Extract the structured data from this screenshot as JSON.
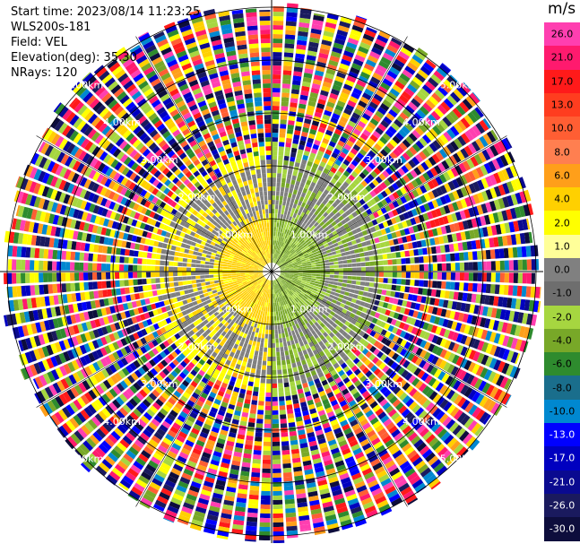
{
  "header": {
    "start_time": "Start time: 2023/08/14 11:23:25",
    "instrument": "WLS200s-181",
    "field": "Field: VEL",
    "elevation": "Elevation(deg): 35.30",
    "nrays": "NRays: 120"
  },
  "colorbar": {
    "unit": "m/s",
    "ticks": [
      "26.0",
      "21.0",
      "17.0",
      "13.0",
      "10.0",
      "8.0",
      "6.0",
      "4.0",
      "2.0",
      "1.0",
      "0.0",
      "-1.0",
      "-2.0",
      "-4.0",
      "-6.0",
      "-8.0",
      "-10.0",
      "-13.0",
      "-17.0",
      "-21.0",
      "-26.0",
      "-30.0"
    ],
    "colors": [
      "#ff3fb0",
      "#ff1a6e",
      "#ff1a1a",
      "#ff3d1f",
      "#ff5e33",
      "#ff7f50",
      "#ff9f1a",
      "#ffd000",
      "#ffff00",
      "#ffff99",
      "#808080",
      "#6e6e6e",
      "#a6d640",
      "#78a828",
      "#2e8b2e",
      "#1a6e8c",
      "#0088d0",
      "#0000ff",
      "#0000c0",
      "#0a0a90",
      "#1a1a5e",
      "#0d0d3c"
    ]
  },
  "chart_data": {
    "type": "heatmap",
    "projection": "polar PPI",
    "field": "VEL",
    "units": "m/s",
    "nrays": 120,
    "elevation_deg": 35.3,
    "color_range": [
      -30.0,
      26.0
    ],
    "range_ring_labels": [
      "1.00km",
      "2.00km",
      "3.00km",
      "4.00km",
      "5.00km",
      "6.00km"
    ],
    "pattern": {
      "near_field": "west half positive ~+1 to +4 m/s (yellow), east half negative ~-1 to -4 m/s (green)",
      "far_field": "noise, random velocities across full scale"
    }
  }
}
